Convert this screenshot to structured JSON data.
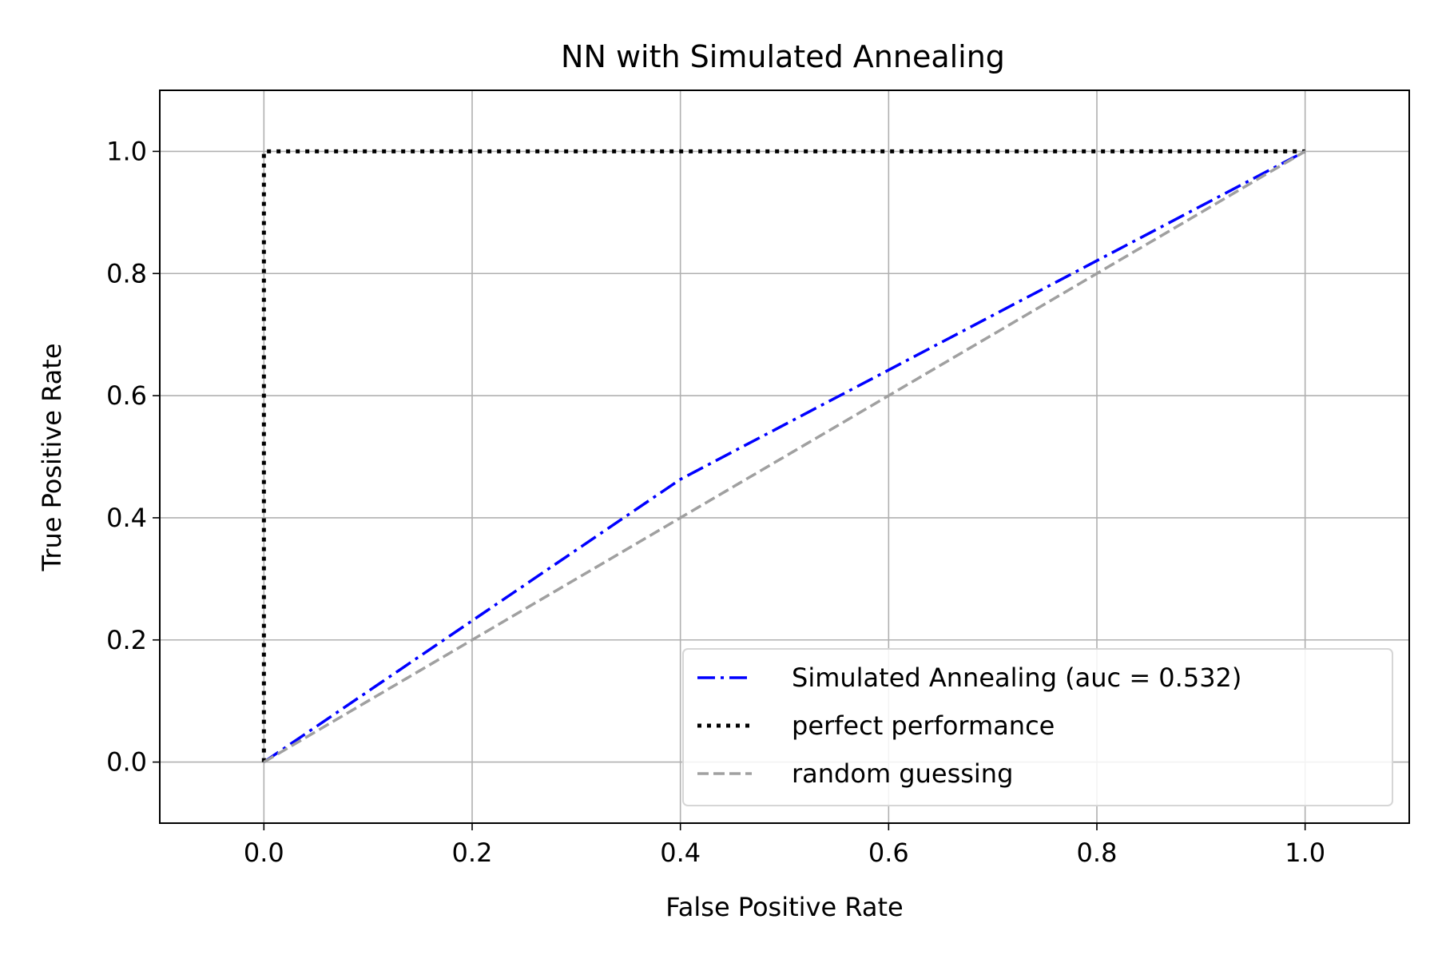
{
  "chart_data": {
    "type": "line",
    "title": "NN with Simulated Annealing",
    "xlabel": "False Positive Rate",
    "ylabel": "True Positive Rate",
    "xlim": [
      -0.1,
      1.1
    ],
    "ylim": [
      -0.1,
      1.1
    ],
    "xticks": [
      0.0,
      0.2,
      0.4,
      0.6,
      0.8,
      1.0
    ],
    "yticks": [
      0.0,
      0.2,
      0.4,
      0.6,
      0.8,
      1.0
    ],
    "xtick_labels": [
      "0.0",
      "0.2",
      "0.4",
      "0.6",
      "0.8",
      "1.0"
    ],
    "ytick_labels": [
      "0.0",
      "0.2",
      "0.4",
      "0.6",
      "0.8",
      "1.0"
    ],
    "grid": true,
    "legend_position": "lower-right",
    "series": [
      {
        "name": "Simulated Annealing (auc = 0.532)",
        "x": [
          0.0,
          0.4,
          1.0
        ],
        "y": [
          0.0,
          0.463,
          1.0
        ],
        "color": "#0000ff",
        "style": "dashdot"
      },
      {
        "name": "perfect performance",
        "x": [
          0.0,
          0.0,
          1.0
        ],
        "y": [
          0.0,
          1.0,
          1.0
        ],
        "color": "#000000",
        "style": "dotted"
      },
      {
        "name": "random guessing",
        "x": [
          0.0,
          1.0
        ],
        "y": [
          0.0,
          1.0
        ],
        "color": "#a0a0a0",
        "style": "dashed"
      }
    ]
  }
}
